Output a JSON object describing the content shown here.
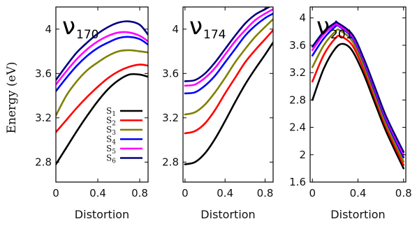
{
  "ylabel": "Energy (eV)",
  "legend": {
    "placement": "inside-right-of-first-panel",
    "entries": [
      {
        "main": "S",
        "sub": "1",
        "color": "#000000"
      },
      {
        "main": "S",
        "sub": "2",
        "color": "#ff0000"
      },
      {
        "main": "S",
        "sub": "3",
        "color": "#808000"
      },
      {
        "main": "S",
        "sub": "4",
        "color": "#0000ff"
      },
      {
        "main": "S",
        "sub": "5",
        "color": "#ff00ff"
      },
      {
        "main": "S",
        "sub": "6",
        "color": "#00007f"
      }
    ]
  },
  "chart_data": [
    {
      "type": "line",
      "title_main": "ν",
      "title_sub": "170",
      "xlabel": "Distortion",
      "xlim": [
        0,
        0.88
      ],
      "ylim": [
        2.62,
        4.2
      ],
      "xticks": [
        0,
        0.4,
        0.8
      ],
      "xtick_labels": [
        "0",
        "0.4",
        "0.8"
      ],
      "yticks": [
        2.8,
        3.2,
        3.6,
        4
      ],
      "ytick_labels": [
        "2.8",
        "3.2",
        "3.6",
        "4"
      ],
      "series": [
        {
          "name": "S1",
          "x": [
            0,
            0.1,
            0.2,
            0.3,
            0.4,
            0.5,
            0.6,
            0.7,
            0.8,
            0.88
          ],
          "y": [
            2.78,
            2.93,
            3.08,
            3.22,
            3.35,
            3.46,
            3.54,
            3.59,
            3.59,
            3.57
          ]
        },
        {
          "name": "S2",
          "x": [
            0,
            0.1,
            0.2,
            0.3,
            0.4,
            0.5,
            0.6,
            0.7,
            0.8,
            0.88
          ],
          "y": [
            3.07,
            3.18,
            3.29,
            3.39,
            3.48,
            3.56,
            3.62,
            3.66,
            3.68,
            3.67
          ]
        },
        {
          "name": "S3",
          "x": [
            0,
            0.1,
            0.2,
            0.3,
            0.4,
            0.5,
            0.6,
            0.7,
            0.8,
            0.88
          ],
          "y": [
            3.22,
            3.4,
            3.53,
            3.63,
            3.7,
            3.76,
            3.8,
            3.81,
            3.8,
            3.79
          ]
        },
        {
          "name": "S4",
          "x": [
            0,
            0.1,
            0.2,
            0.3,
            0.4,
            0.5,
            0.6,
            0.7,
            0.8,
            0.88
          ],
          "y": [
            3.44,
            3.56,
            3.67,
            3.76,
            3.83,
            3.88,
            3.92,
            3.93,
            3.91,
            3.86
          ]
        },
        {
          "name": "S5",
          "x": [
            0,
            0.1,
            0.2,
            0.3,
            0.4,
            0.5,
            0.6,
            0.7,
            0.8,
            0.88
          ],
          "y": [
            3.5,
            3.62,
            3.73,
            3.82,
            3.89,
            3.94,
            3.97,
            3.97,
            3.94,
            3.89
          ]
        },
        {
          "name": "S6",
          "x": [
            0,
            0.1,
            0.2,
            0.3,
            0.4,
            0.5,
            0.6,
            0.7,
            0.8,
            0.88
          ],
          "y": [
            3.54,
            3.67,
            3.79,
            3.88,
            3.96,
            4.02,
            4.06,
            4.07,
            4.04,
            3.95
          ]
        }
      ]
    },
    {
      "type": "line",
      "title_main": "ν",
      "title_sub": "174",
      "xlabel": "Distortion",
      "xlim": [
        -0.02,
        0.88
      ],
      "ylim": [
        2.62,
        4.2
      ],
      "xticks": [
        0,
        0.4,
        0.8
      ],
      "xtick_labels": [
        "0",
        "0.4",
        "0.8"
      ],
      "yticks": [
        2.8,
        3.2,
        3.6,
        4
      ],
      "ytick_labels": [
        "2.8",
        "3.2",
        "3.6",
        "4"
      ],
      "series": [
        {
          "name": "S1",
          "x": [
            0,
            0.1,
            0.2,
            0.3,
            0.4,
            0.5,
            0.6,
            0.7,
            0.8,
            0.88
          ],
          "y": [
            2.78,
            2.8,
            2.88,
            3.01,
            3.17,
            3.34,
            3.5,
            3.64,
            3.77,
            3.88
          ]
        },
        {
          "name": "S2",
          "x": [
            0,
            0.1,
            0.2,
            0.3,
            0.4,
            0.5,
            0.6,
            0.7,
            0.8,
            0.88
          ],
          "y": [
            3.06,
            3.08,
            3.15,
            3.27,
            3.42,
            3.56,
            3.7,
            3.81,
            3.91,
            3.99
          ]
        },
        {
          "name": "S3",
          "x": [
            0,
            0.1,
            0.2,
            0.3,
            0.4,
            0.5,
            0.6,
            0.7,
            0.8,
            0.88
          ],
          "y": [
            3.23,
            3.25,
            3.32,
            3.43,
            3.56,
            3.7,
            3.82,
            3.93,
            4.02,
            4.09
          ]
        },
        {
          "name": "S4",
          "x": [
            0,
            0.1,
            0.2,
            0.3,
            0.4,
            0.5,
            0.6,
            0.7,
            0.8,
            0.88
          ],
          "y": [
            3.42,
            3.43,
            3.49,
            3.58,
            3.7,
            3.82,
            3.94,
            4.03,
            4.1,
            4.14
          ]
        },
        {
          "name": "S5",
          "x": [
            0,
            0.1,
            0.2,
            0.3,
            0.4,
            0.5,
            0.6,
            0.7,
            0.8,
            0.88
          ],
          "y": [
            3.49,
            3.5,
            3.56,
            3.65,
            3.77,
            3.89,
            3.99,
            4.08,
            4.14,
            4.18
          ]
        },
        {
          "name": "S6",
          "x": [
            0,
            0.1,
            0.2,
            0.3,
            0.4,
            0.5,
            0.6,
            0.7,
            0.8,
            0.88
          ],
          "y": [
            3.53,
            3.54,
            3.6,
            3.7,
            3.82,
            3.94,
            4.05,
            4.13,
            4.18,
            4.22
          ]
        }
      ]
    },
    {
      "type": "line",
      "title_main": "ν",
      "title_sub": "201",
      "xlabel": "Distortion",
      "xlim": [
        -0.02,
        0.82
      ],
      "ylim": [
        1.6,
        4.16
      ],
      "xticks": [
        0,
        0.4,
        0.8
      ],
      "xtick_labels": [
        "0",
        "0.4",
        "0.8"
      ],
      "yticks": [
        1.6,
        2,
        2.4,
        2.8,
        3.2,
        3.6,
        4
      ],
      "ytick_labels": [
        "1.6",
        "2",
        "2.4",
        "2.8",
        "3.2",
        "3.6",
        "4"
      ],
      "series": [
        {
          "name": "S1",
          "x": [
            0,
            0.1,
            0.2,
            0.27,
            0.35,
            0.45,
            0.55,
            0.65,
            0.8
          ],
          "y": [
            2.8,
            3.26,
            3.55,
            3.62,
            3.52,
            3.18,
            2.75,
            2.33,
            1.8
          ]
        },
        {
          "name": "S2",
          "x": [
            0,
            0.1,
            0.2,
            0.25,
            0.35,
            0.45,
            0.55,
            0.65,
            0.8
          ],
          "y": [
            3.07,
            3.46,
            3.7,
            3.73,
            3.6,
            3.25,
            2.82,
            2.39,
            1.85
          ]
        },
        {
          "name": "S3",
          "x": [
            0,
            0.1,
            0.2,
            0.24,
            0.35,
            0.45,
            0.55,
            0.65,
            0.8
          ],
          "y": [
            3.28,
            3.6,
            3.8,
            3.82,
            3.66,
            3.3,
            2.86,
            2.43,
            1.9
          ]
        },
        {
          "name": "S4",
          "x": [
            0,
            0.1,
            0.2,
            0.23,
            0.35,
            0.45,
            0.55,
            0.65,
            0.8
          ],
          "y": [
            3.45,
            3.7,
            3.87,
            3.88,
            3.71,
            3.36,
            2.92,
            2.49,
            1.96
          ]
        },
        {
          "name": "S5",
          "x": [
            0,
            0.1,
            0.2,
            0.22,
            0.35,
            0.45,
            0.55,
            0.65,
            0.8
          ],
          "y": [
            3.53,
            3.76,
            3.9,
            3.9,
            3.73,
            3.38,
            2.95,
            2.52,
            2.0
          ]
        },
        {
          "name": "S6",
          "x": [
            0,
            0.1,
            0.2,
            0.22,
            0.35,
            0.45,
            0.55,
            0.65,
            0.8
          ],
          "y": [
            3.58,
            3.8,
            3.93,
            3.93,
            3.76,
            3.41,
            2.98,
            2.55,
            2.04
          ]
        }
      ]
    }
  ]
}
